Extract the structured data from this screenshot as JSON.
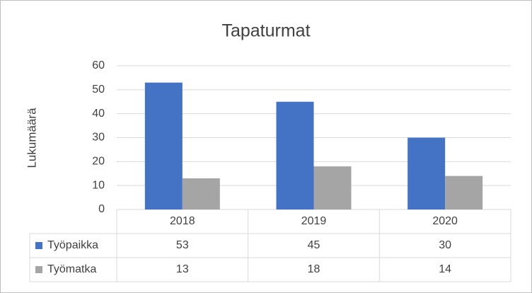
{
  "chart_data": {
    "type": "bar",
    "title": "Tapaturmat",
    "y_label": "Lukumäärä",
    "categories": [
      "2018",
      "2019",
      "2020"
    ],
    "series": [
      {
        "name": "Työpaikka",
        "color": "#4472c4",
        "values": [
          53,
          45,
          30
        ]
      },
      {
        "name": "Työmatka",
        "color": "#a5a5a5",
        "values": [
          13,
          18,
          14
        ]
      }
    ],
    "ylim": [
      0,
      60
    ],
    "yticks": [
      0,
      10,
      20,
      30,
      40,
      50,
      60
    ],
    "grid": true
  }
}
